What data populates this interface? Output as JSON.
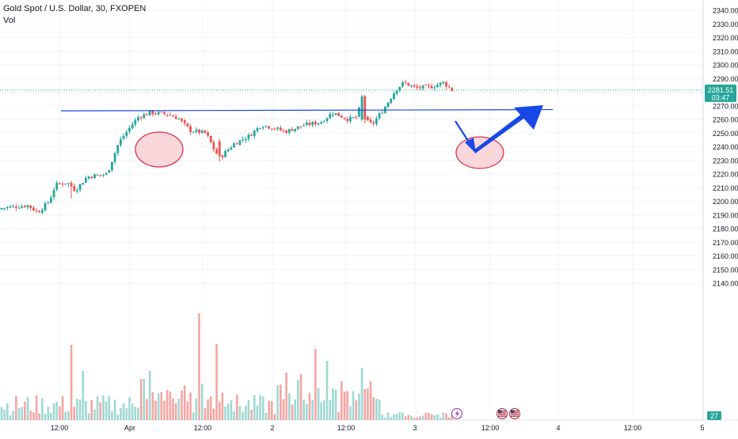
{
  "header": {
    "symbol_title": "Gold Spot / U.S. Dollar, 30, FXOPEN",
    "volume_label": "Vol"
  },
  "price_axis": {
    "ticks": [
      "2340.00",
      "2330.00",
      "2320.00",
      "2310.00",
      "2300.00",
      "2290.00",
      "2270.00",
      "2260.00",
      "2250.00",
      "2240.00",
      "2230.00",
      "2220.00",
      "2210.00",
      "2200.00",
      "2190.00",
      "2180.00",
      "2170.00",
      "2160.00",
      "2150.00",
      "2140.00"
    ],
    "last_price": "2281.51",
    "countdown": "03:47",
    "volume_badge": "27"
  },
  "time_axis": {
    "labels": [
      "12:00",
      "Apr",
      "12:00",
      "2",
      "12:00",
      "3",
      "12:00",
      "4",
      "12:00",
      "5"
    ]
  },
  "colors": {
    "up": "#26a69a",
    "down": "#ef5350",
    "vol_up": "#9fd8d2",
    "vol_down": "#f5a5a3",
    "drawing": "#1848e6",
    "highlight_fill": "#f7c9cf",
    "highlight_stroke": "#e0334e"
  },
  "icons": [
    "lightning-event-icon",
    "us-flag-event-icon",
    "us-flag-event-icon"
  ],
  "chart_data": {
    "type": "candlestick",
    "title": "Gold Spot / U.S. Dollar, 30, FXOPEN",
    "ylim": [
      2135,
      2345
    ],
    "grid": true,
    "support_level": 2266,
    "candles_summary": "30-minute candles rising from ~2194 to a first peak ~2266, pullback to ~2230, rally to ~2288, last price 2281.51",
    "key_points": [
      {
        "time": "Mar 29 morning",
        "price": 2194
      },
      {
        "time": "Mar 29 12:00",
        "price": 2212
      },
      {
        "time": "Apr 1 early",
        "price": 2265
      },
      {
        "time": "Apr 1 12:00",
        "price": 2232
      },
      {
        "time": "Apr 2",
        "price": 2255
      },
      {
        "time": "Apr 2 12:00",
        "price": 2262
      },
      {
        "time": "Apr 3 early",
        "price": 2286
      },
      {
        "time": "Apr 3 last",
        "price": 2281.51
      }
    ]
  }
}
